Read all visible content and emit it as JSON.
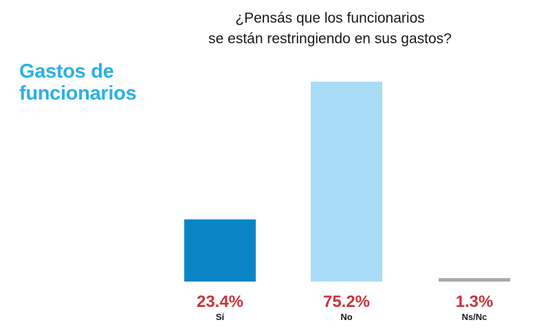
{
  "side_title": {
    "line1": "Gastos de",
    "line2": "funcionarios"
  },
  "chart_data": {
    "type": "bar",
    "title_lines": [
      "¿Pensás que los funcionarios",
      "se están restringiendo en sus gastos?"
    ],
    "categories": [
      "Sí",
      "No",
      "Ns/Nc"
    ],
    "values": [
      23.4,
      75.2,
      1.3
    ],
    "value_labels": [
      "23.4%",
      "75.2%",
      "1.3%"
    ],
    "colors": [
      "#0a85c6",
      "#a8dcf6",
      "#a7a9ac"
    ],
    "label_color": "#c8343a",
    "ylim": [
      0,
      100
    ],
    "grid": false,
    "legend": "none"
  }
}
